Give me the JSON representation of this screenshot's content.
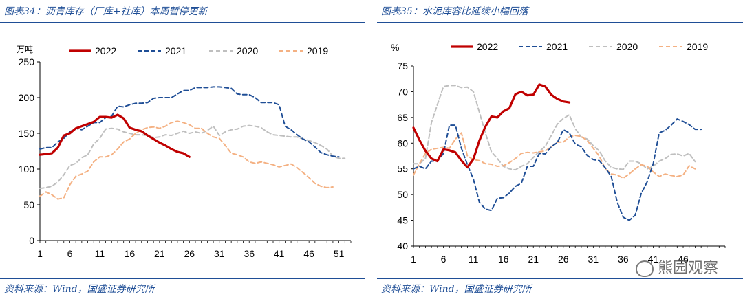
{
  "left": {
    "title": "图表34：沥青库存（厂库+社库）本周暂停更新",
    "source": "资料来源：Wind，国盛证券研究所"
  },
  "right": {
    "title": "图表35：水泥库容比延续小幅回落",
    "source": "资料来源：Wind，国盛证券研究所",
    "watermark": "熊园观察"
  },
  "colors": {
    "2022": "#c00000",
    "2021": "#1f4e96",
    "2020": "#bfbfbf",
    "2019": "#f4b183",
    "accent": "#1f4e96"
  },
  "chart_data": [
    {
      "type": "line",
      "title": "沥青库存（厂库+社库）本周暂停更新",
      "unit_label": "万吨",
      "xlabel": "",
      "ylabel": "万吨",
      "xlim": [
        1,
        53
      ],
      "ylim": [
        0,
        250
      ],
      "yticks": [
        0,
        50,
        100,
        150,
        200,
        250
      ],
      "xticks": [
        1,
        6,
        11,
        16,
        21,
        26,
        31,
        36,
        41,
        46,
        51
      ],
      "legend": [
        "2022",
        "2021",
        "2020",
        "2019"
      ],
      "series": [
        {
          "name": "2022",
          "style": "solid",
          "color": "#c00000",
          "values": [
            120,
            121,
            122,
            130,
            147,
            150,
            157,
            160,
            163,
            166,
            173,
            173,
            172,
            176,
            171,
            158,
            155,
            153,
            147,
            142,
            137,
            133,
            128,
            124,
            122,
            117
          ]
        },
        {
          "name": "2021",
          "style": "dashed",
          "color": "#1f4e96",
          "values": [
            128,
            130,
            130,
            138,
            143,
            152,
            157,
            155,
            160,
            165,
            165,
            172,
            174,
            188,
            187,
            190,
            192,
            192,
            193,
            199,
            200,
            200,
            200,
            205,
            210,
            210,
            214,
            214,
            214,
            215,
            215,
            214,
            213,
            205,
            204,
            204,
            200,
            193,
            193,
            193,
            190,
            160,
            155,
            148,
            142,
            138,
            131,
            123,
            120,
            118,
            117
          ]
        },
        {
          "name": "2020",
          "style": "dashed",
          "color": "#bfbfbf",
          "values": [
            73,
            74,
            76,
            82,
            92,
            105,
            108,
            116,
            120,
            135,
            143,
            156,
            157,
            156,
            152,
            150,
            148,
            148,
            147,
            144,
            145,
            148,
            147,
            150,
            153,
            150,
            152,
            150,
            154,
            160,
            147,
            152,
            155,
            156,
            160,
            161,
            160,
            158,
            152,
            148,
            147,
            146,
            145,
            145,
            142,
            140,
            137,
            133,
            128,
            118,
            115,
            115
          ]
        },
        {
          "name": "2019",
          "style": "dashed",
          "color": "#f4b183",
          "values": [
            62,
            68,
            64,
            58,
            60,
            78,
            90,
            93,
            97,
            110,
            117,
            117,
            120,
            128,
            138,
            142,
            150,
            155,
            158,
            159,
            157,
            160,
            165,
            167,
            165,
            162,
            157,
            157,
            150,
            145,
            143,
            133,
            122,
            120,
            117,
            110,
            108,
            110,
            108,
            106,
            103,
            105,
            107,
            102,
            95,
            88,
            80,
            76,
            74,
            75
          ]
        }
      ]
    },
    {
      "type": "line",
      "title": "水泥库容比延续小幅回落",
      "unit_label": "%",
      "xlabel": "",
      "ylabel": "%",
      "xlim": [
        1,
        53
      ],
      "ylim": [
        40,
        75
      ],
      "yticks": [
        40,
        45,
        50,
        55,
        60,
        65,
        70,
        75
      ],
      "xticks": [
        1,
        6,
        11,
        16,
        21,
        26,
        31,
        36,
        41,
        46
      ],
      "legend": [
        "2022",
        "2021",
        "2020",
        "2019"
      ],
      "series": [
        {
          "name": "2022",
          "style": "solid",
          "color": "#c00000",
          "values": [
            63.0,
            60.6,
            58.5,
            57.0,
            56.5,
            58.8,
            58.6,
            58.2,
            56.6,
            55.3,
            56.9,
            60.5,
            63.2,
            65.2,
            65.0,
            66.2,
            66.8,
            69.5,
            70.0,
            69.3,
            69.4,
            71.4,
            71.0,
            69.4,
            68.6,
            68.1,
            67.9
          ]
        },
        {
          "name": "2021",
          "style": "dashed",
          "color": "#1f4e96",
          "values": [
            55.0,
            55.5,
            55.0,
            56.5,
            56.5,
            58.0,
            63.5,
            63.5,
            59.0,
            55.8,
            53.0,
            48.5,
            47.2,
            46.9,
            49.3,
            49.4,
            50.3,
            51.6,
            52.2,
            55.5,
            55.5,
            58.0,
            57.9,
            59.3,
            60.1,
            62.6,
            62.0,
            59.8,
            59.3,
            57.6,
            56.8,
            56.6,
            55.2,
            53.5,
            48.5,
            45.6,
            45.0,
            46.0,
            50.2,
            52.5,
            56.0,
            62.0,
            62.5,
            63.5,
            64.7,
            64.2,
            63.6,
            62.7,
            62.7
          ]
        },
        {
          "name": "2020",
          "style": "dashed",
          "color": "#bfbfbf",
          "values": [
            56.0,
            56.0,
            57.0,
            64.0,
            67.5,
            71.0,
            71.2,
            71.2,
            70.8,
            70.9,
            70.0,
            66.0,
            62.0,
            58.3,
            57.0,
            55.5,
            55.0,
            54.8,
            55.5,
            56.0,
            57.2,
            58.4,
            59.4,
            61.5,
            63.7,
            64.8,
            65.5,
            62.8,
            61.2,
            60.8,
            59.5,
            58.5,
            56.5,
            55.3,
            55.0,
            54.9,
            56.5,
            56.5,
            56.0,
            55.0,
            55.5,
            56.5,
            57.0,
            57.8,
            57.9,
            57.5,
            58.0,
            56.4
          ]
        },
        {
          "name": "2019",
          "style": "dashed",
          "color": "#f4b183",
          "values": [
            53.8,
            56.0,
            58.0,
            58.8,
            59.0,
            59.2,
            59.0,
            60.8,
            62.0,
            57.5,
            56.8,
            56.6,
            56.0,
            55.9,
            55.5,
            55.6,
            56.2,
            57.0,
            58.0,
            58.2,
            58.1,
            58.3,
            58.5,
            59.3,
            60.2,
            60.2,
            61.2,
            61.5,
            61.3,
            60.5,
            59.0,
            57.5,
            55.0,
            54.0,
            53.8,
            53.2,
            54.0,
            55.0,
            55.8,
            55.5,
            54.4,
            53.5,
            54.0,
            53.7,
            53.5,
            53.8,
            55.6,
            55.0
          ]
        }
      ]
    }
  ]
}
